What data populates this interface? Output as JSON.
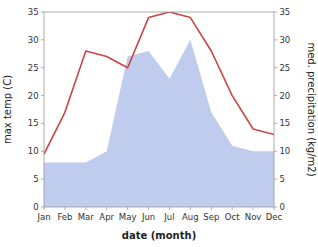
{
  "chart_data": {
    "type": "line",
    "xlabel": "date (month)",
    "ylabel": "max temp (C)",
    "y2label": "med. precipitation (kg/m2)",
    "categories": [
      "Jan",
      "Feb",
      "Mar",
      "Apr",
      "May",
      "Jun",
      "Jul",
      "Aug",
      "Sep",
      "Oct",
      "Nov",
      "Dec"
    ],
    "series": [
      {
        "type": "area",
        "color": "#c0ccee",
        "axis": "y2",
        "values": [
          8.0,
          8.0,
          8.0,
          10.0,
          27.0,
          28.0,
          23.0,
          30.0,
          17.0,
          11.0,
          10.0,
          10.0
        ]
      },
      {
        "type": "line",
        "color": "#cc4444",
        "values": [
          9.5,
          17.0,
          28.0,
          27.0,
          25.0,
          34.0,
          35.0,
          34.0,
          28.0,
          20.0,
          14.0,
          13.0
        ]
      }
    ],
    "ylim": [
      0,
      35
    ],
    "yticks": [
      0,
      5,
      10,
      15,
      20,
      25,
      30,
      35
    ],
    "y2lim": [
      0,
      35
    ],
    "y2ticks": [
      0,
      5,
      10,
      15,
      20,
      25,
      30,
      35
    ],
    "grid": false
  }
}
